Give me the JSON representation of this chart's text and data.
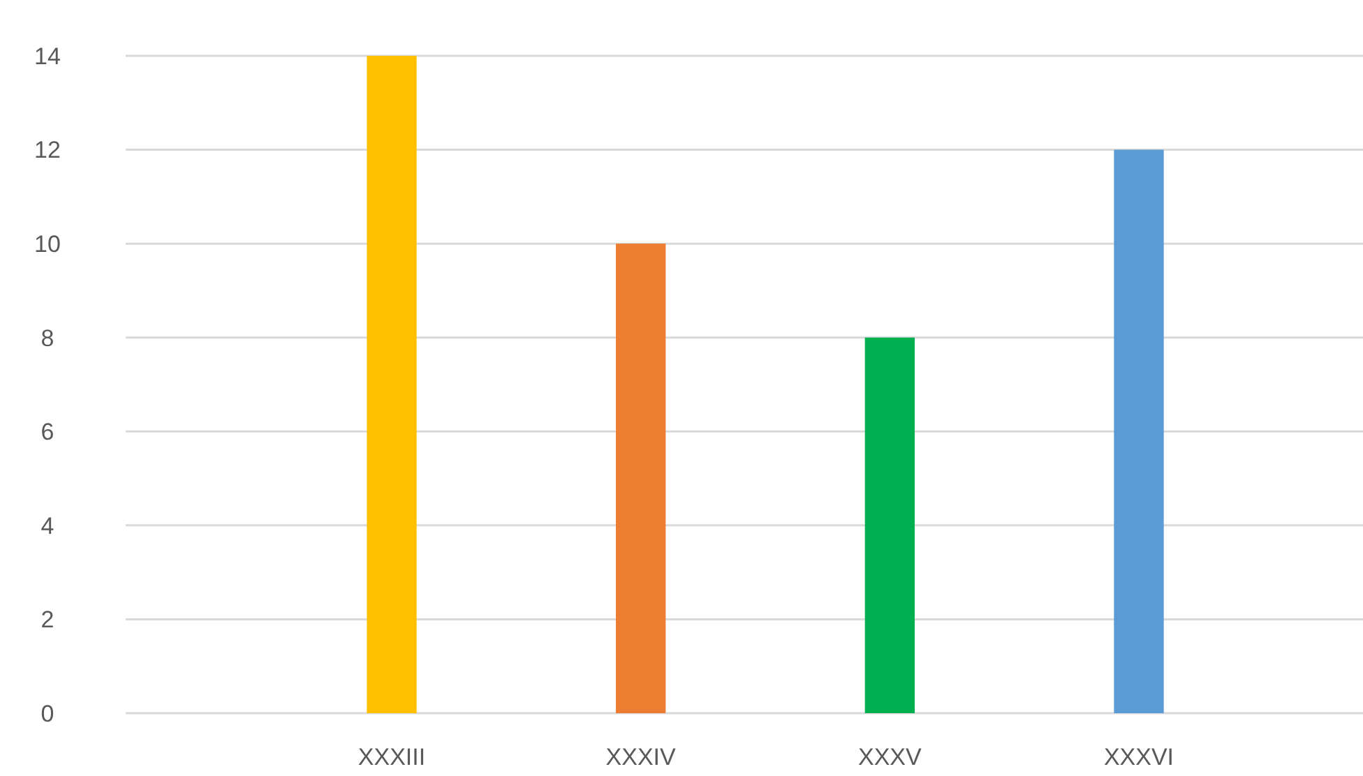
{
  "chart_data": {
    "type": "bar",
    "categories": [
      "XXXIII",
      "XXXIV",
      "XXXV",
      "XXXVI"
    ],
    "values": [
      14,
      10,
      8,
      12
    ],
    "colors": [
      "#ffc000",
      "#ed7d31",
      "#00b050",
      "#5b9bd5"
    ],
    "ylim": [
      0,
      14
    ],
    "yticks": [
      0,
      2,
      4,
      6,
      8,
      10,
      12,
      14
    ],
    "grid": "y"
  }
}
